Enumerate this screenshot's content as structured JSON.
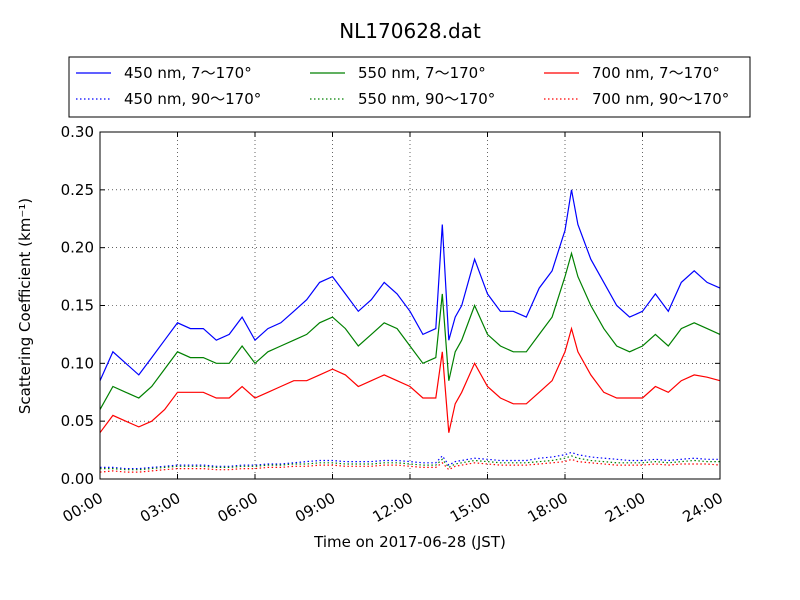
{
  "chart_data": {
    "type": "line",
    "title": "NL170628.dat",
    "xlabel": "Time on 2017-06-28 (JST)",
    "ylabel": "Scattering Coefficient (km⁻¹)",
    "xlim": [
      "00:00",
      "24:00"
    ],
    "ylim": [
      0,
      0.3
    ],
    "grid": true,
    "legend_position": "top",
    "x_ticks": [
      "00:00",
      "03:00",
      "06:00",
      "09:00",
      "12:00",
      "15:00",
      "18:00",
      "21:00",
      "24:00"
    ],
    "y_ticks": [
      "0.00",
      "0.05",
      "0.10",
      "0.15",
      "0.20",
      "0.25",
      "0.30"
    ],
    "x": [
      "00:00",
      "00:30",
      "01:00",
      "01:30",
      "02:00",
      "02:30",
      "03:00",
      "03:30",
      "04:00",
      "04:30",
      "05:00",
      "05:30",
      "06:00",
      "06:30",
      "07:00",
      "07:30",
      "08:00",
      "08:30",
      "09:00",
      "09:30",
      "10:00",
      "10:30",
      "11:00",
      "11:30",
      "12:00",
      "12:30",
      "13:00",
      "13:15",
      "13:30",
      "13:45",
      "14:00",
      "14:30",
      "15:00",
      "15:30",
      "16:00",
      "16:30",
      "17:00",
      "17:30",
      "18:00",
      "18:15",
      "18:30",
      "19:00",
      "19:30",
      "20:00",
      "20:30",
      "21:00",
      "21:30",
      "22:00",
      "22:30",
      "23:00",
      "23:30",
      "24:00"
    ],
    "series": [
      {
        "name": "450 nm, 7～170°",
        "color": "#0000ff",
        "style": "solid",
        "values": [
          0.085,
          0.11,
          0.1,
          0.09,
          0.105,
          0.12,
          0.135,
          0.13,
          0.13,
          0.12,
          0.125,
          0.14,
          0.12,
          0.13,
          0.135,
          0.145,
          0.155,
          0.17,
          0.175,
          0.16,
          0.145,
          0.155,
          0.17,
          0.16,
          0.145,
          0.125,
          0.13,
          0.22,
          0.12,
          0.14,
          0.15,
          0.19,
          0.16,
          0.145,
          0.145,
          0.14,
          0.165,
          0.18,
          0.215,
          0.25,
          0.22,
          0.19,
          0.17,
          0.15,
          0.14,
          0.145,
          0.16,
          0.145,
          0.17,
          0.18,
          0.17,
          0.165
        ]
      },
      {
        "name": "550 nm, 7～170°",
        "color": "#008000",
        "style": "solid",
        "values": [
          0.06,
          0.08,
          0.075,
          0.07,
          0.08,
          0.095,
          0.11,
          0.105,
          0.105,
          0.1,
          0.1,
          0.115,
          0.1,
          0.11,
          0.115,
          0.12,
          0.125,
          0.135,
          0.14,
          0.13,
          0.115,
          0.125,
          0.135,
          0.13,
          0.115,
          0.1,
          0.105,
          0.16,
          0.085,
          0.11,
          0.12,
          0.15,
          0.125,
          0.115,
          0.11,
          0.11,
          0.125,
          0.14,
          0.175,
          0.195,
          0.175,
          0.15,
          0.13,
          0.115,
          0.11,
          0.115,
          0.125,
          0.115,
          0.13,
          0.135,
          0.13,
          0.125
        ]
      },
      {
        "name": "700 nm, 7～170°",
        "color": "#ff0000",
        "style": "solid",
        "values": [
          0.04,
          0.055,
          0.05,
          0.045,
          0.05,
          0.06,
          0.075,
          0.075,
          0.075,
          0.07,
          0.07,
          0.08,
          0.07,
          0.075,
          0.08,
          0.085,
          0.085,
          0.09,
          0.095,
          0.09,
          0.08,
          0.085,
          0.09,
          0.085,
          0.08,
          0.07,
          0.07,
          0.11,
          0.04,
          0.065,
          0.075,
          0.1,
          0.08,
          0.07,
          0.065,
          0.065,
          0.075,
          0.085,
          0.11,
          0.13,
          0.11,
          0.09,
          0.075,
          0.07,
          0.07,
          0.07,
          0.08,
          0.075,
          0.085,
          0.09,
          0.088,
          0.085
        ]
      },
      {
        "name": "450 nm, 90～170°",
        "color": "#0000ff",
        "style": "dotted",
        "values": [
          0.01,
          0.01,
          0.009,
          0.009,
          0.01,
          0.011,
          0.012,
          0.012,
          0.012,
          0.011,
          0.011,
          0.012,
          0.012,
          0.013,
          0.013,
          0.014,
          0.015,
          0.016,
          0.016,
          0.015,
          0.015,
          0.015,
          0.016,
          0.016,
          0.015,
          0.014,
          0.014,
          0.02,
          0.012,
          0.015,
          0.016,
          0.018,
          0.017,
          0.016,
          0.016,
          0.016,
          0.018,
          0.019,
          0.021,
          0.023,
          0.021,
          0.019,
          0.018,
          0.017,
          0.016,
          0.016,
          0.017,
          0.016,
          0.017,
          0.018,
          0.017,
          0.017
        ]
      },
      {
        "name": "550 nm, 90～170°",
        "color": "#008000",
        "style": "dotted",
        "values": [
          0.009,
          0.009,
          0.008,
          0.008,
          0.009,
          0.01,
          0.011,
          0.011,
          0.011,
          0.01,
          0.01,
          0.011,
          0.011,
          0.012,
          0.012,
          0.013,
          0.013,
          0.014,
          0.014,
          0.013,
          0.013,
          0.013,
          0.014,
          0.014,
          0.013,
          0.012,
          0.012,
          0.017,
          0.01,
          0.013,
          0.014,
          0.016,
          0.015,
          0.014,
          0.014,
          0.014,
          0.015,
          0.016,
          0.018,
          0.02,
          0.018,
          0.016,
          0.015,
          0.014,
          0.014,
          0.014,
          0.015,
          0.014,
          0.015,
          0.016,
          0.015,
          0.015
        ]
      },
      {
        "name": "700 nm, 90～170°",
        "color": "#ff0000",
        "style": "dotted",
        "values": [
          0.006,
          0.007,
          0.006,
          0.006,
          0.007,
          0.008,
          0.009,
          0.009,
          0.009,
          0.008,
          0.008,
          0.009,
          0.009,
          0.01,
          0.01,
          0.011,
          0.011,
          0.012,
          0.012,
          0.011,
          0.011,
          0.011,
          0.012,
          0.012,
          0.011,
          0.01,
          0.01,
          0.014,
          0.008,
          0.011,
          0.012,
          0.014,
          0.013,
          0.012,
          0.012,
          0.012,
          0.013,
          0.014,
          0.015,
          0.017,
          0.015,
          0.014,
          0.013,
          0.012,
          0.012,
          0.012,
          0.013,
          0.012,
          0.013,
          0.013,
          0.013,
          0.012
        ]
      }
    ]
  }
}
